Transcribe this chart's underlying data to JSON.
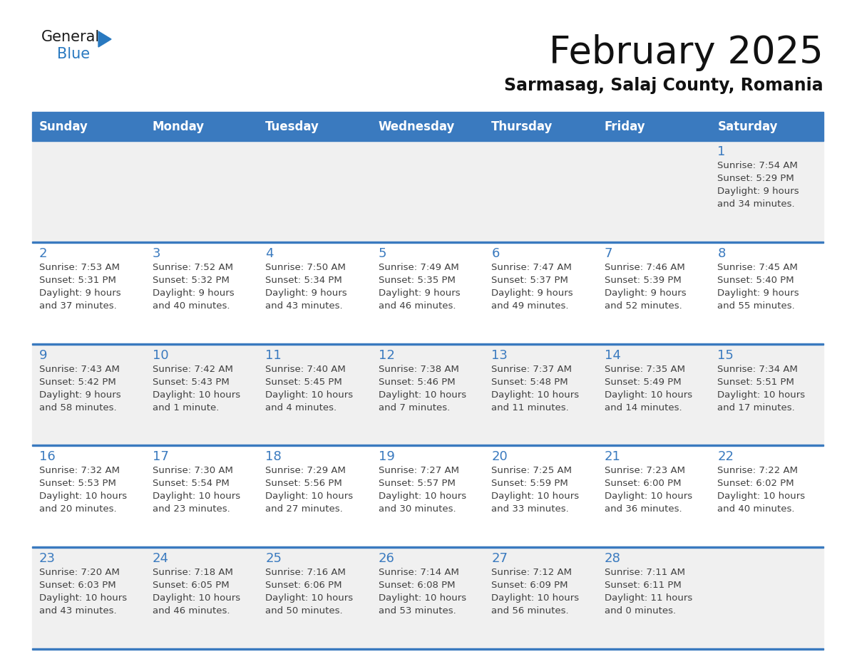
{
  "title": "February 2025",
  "subtitle": "Sarmasag, Salaj County, Romania",
  "header_color": "#3a7abf",
  "header_text_color": "#FFFFFF",
  "day_names": [
    "Sunday",
    "Monday",
    "Tuesday",
    "Wednesday",
    "Thursday",
    "Friday",
    "Saturday"
  ],
  "background_color": "#FFFFFF",
  "cell_bg_even": "#f0f0f0",
  "cell_bg_odd": "#FFFFFF",
  "separator_color": "#3a7abf",
  "number_color": "#3a7abf",
  "text_color": "#404040",
  "logo_general_color": "#1a1a1a",
  "logo_blue_color": "#2979C0",
  "logo_triangle_color": "#2979C0",
  "weeks": [
    [
      {
        "date": "",
        "sunrise": "",
        "sunset": "",
        "daylight1": "",
        "daylight2": ""
      },
      {
        "date": "",
        "sunrise": "",
        "sunset": "",
        "daylight1": "",
        "daylight2": ""
      },
      {
        "date": "",
        "sunrise": "",
        "sunset": "",
        "daylight1": "",
        "daylight2": ""
      },
      {
        "date": "",
        "sunrise": "",
        "sunset": "",
        "daylight1": "",
        "daylight2": ""
      },
      {
        "date": "",
        "sunrise": "",
        "sunset": "",
        "daylight1": "",
        "daylight2": ""
      },
      {
        "date": "",
        "sunrise": "",
        "sunset": "",
        "daylight1": "",
        "daylight2": ""
      },
      {
        "date": "1",
        "sunrise": "Sunrise: 7:54 AM",
        "sunset": "Sunset: 5:29 PM",
        "daylight1": "Daylight: 9 hours",
        "daylight2": "and 34 minutes."
      }
    ],
    [
      {
        "date": "2",
        "sunrise": "Sunrise: 7:53 AM",
        "sunset": "Sunset: 5:31 PM",
        "daylight1": "Daylight: 9 hours",
        "daylight2": "and 37 minutes."
      },
      {
        "date": "3",
        "sunrise": "Sunrise: 7:52 AM",
        "sunset": "Sunset: 5:32 PM",
        "daylight1": "Daylight: 9 hours",
        "daylight2": "and 40 minutes."
      },
      {
        "date": "4",
        "sunrise": "Sunrise: 7:50 AM",
        "sunset": "Sunset: 5:34 PM",
        "daylight1": "Daylight: 9 hours",
        "daylight2": "and 43 minutes."
      },
      {
        "date": "5",
        "sunrise": "Sunrise: 7:49 AM",
        "sunset": "Sunset: 5:35 PM",
        "daylight1": "Daylight: 9 hours",
        "daylight2": "and 46 minutes."
      },
      {
        "date": "6",
        "sunrise": "Sunrise: 7:47 AM",
        "sunset": "Sunset: 5:37 PM",
        "daylight1": "Daylight: 9 hours",
        "daylight2": "and 49 minutes."
      },
      {
        "date": "7",
        "sunrise": "Sunrise: 7:46 AM",
        "sunset": "Sunset: 5:39 PM",
        "daylight1": "Daylight: 9 hours",
        "daylight2": "and 52 minutes."
      },
      {
        "date": "8",
        "sunrise": "Sunrise: 7:45 AM",
        "sunset": "Sunset: 5:40 PM",
        "daylight1": "Daylight: 9 hours",
        "daylight2": "and 55 minutes."
      }
    ],
    [
      {
        "date": "9",
        "sunrise": "Sunrise: 7:43 AM",
        "sunset": "Sunset: 5:42 PM",
        "daylight1": "Daylight: 9 hours",
        "daylight2": "and 58 minutes."
      },
      {
        "date": "10",
        "sunrise": "Sunrise: 7:42 AM",
        "sunset": "Sunset: 5:43 PM",
        "daylight1": "Daylight: 10 hours",
        "daylight2": "and 1 minute."
      },
      {
        "date": "11",
        "sunrise": "Sunrise: 7:40 AM",
        "sunset": "Sunset: 5:45 PM",
        "daylight1": "Daylight: 10 hours",
        "daylight2": "and 4 minutes."
      },
      {
        "date": "12",
        "sunrise": "Sunrise: 7:38 AM",
        "sunset": "Sunset: 5:46 PM",
        "daylight1": "Daylight: 10 hours",
        "daylight2": "and 7 minutes."
      },
      {
        "date": "13",
        "sunrise": "Sunrise: 7:37 AM",
        "sunset": "Sunset: 5:48 PM",
        "daylight1": "Daylight: 10 hours",
        "daylight2": "and 11 minutes."
      },
      {
        "date": "14",
        "sunrise": "Sunrise: 7:35 AM",
        "sunset": "Sunset: 5:49 PM",
        "daylight1": "Daylight: 10 hours",
        "daylight2": "and 14 minutes."
      },
      {
        "date": "15",
        "sunrise": "Sunrise: 7:34 AM",
        "sunset": "Sunset: 5:51 PM",
        "daylight1": "Daylight: 10 hours",
        "daylight2": "and 17 minutes."
      }
    ],
    [
      {
        "date": "16",
        "sunrise": "Sunrise: 7:32 AM",
        "sunset": "Sunset: 5:53 PM",
        "daylight1": "Daylight: 10 hours",
        "daylight2": "and 20 minutes."
      },
      {
        "date": "17",
        "sunrise": "Sunrise: 7:30 AM",
        "sunset": "Sunset: 5:54 PM",
        "daylight1": "Daylight: 10 hours",
        "daylight2": "and 23 minutes."
      },
      {
        "date": "18",
        "sunrise": "Sunrise: 7:29 AM",
        "sunset": "Sunset: 5:56 PM",
        "daylight1": "Daylight: 10 hours",
        "daylight2": "and 27 minutes."
      },
      {
        "date": "19",
        "sunrise": "Sunrise: 7:27 AM",
        "sunset": "Sunset: 5:57 PM",
        "daylight1": "Daylight: 10 hours",
        "daylight2": "and 30 minutes."
      },
      {
        "date": "20",
        "sunrise": "Sunrise: 7:25 AM",
        "sunset": "Sunset: 5:59 PM",
        "daylight1": "Daylight: 10 hours",
        "daylight2": "and 33 minutes."
      },
      {
        "date": "21",
        "sunrise": "Sunrise: 7:23 AM",
        "sunset": "Sunset: 6:00 PM",
        "daylight1": "Daylight: 10 hours",
        "daylight2": "and 36 minutes."
      },
      {
        "date": "22",
        "sunrise": "Sunrise: 7:22 AM",
        "sunset": "Sunset: 6:02 PM",
        "daylight1": "Daylight: 10 hours",
        "daylight2": "and 40 minutes."
      }
    ],
    [
      {
        "date": "23",
        "sunrise": "Sunrise: 7:20 AM",
        "sunset": "Sunset: 6:03 PM",
        "daylight1": "Daylight: 10 hours",
        "daylight2": "and 43 minutes."
      },
      {
        "date": "24",
        "sunrise": "Sunrise: 7:18 AM",
        "sunset": "Sunset: 6:05 PM",
        "daylight1": "Daylight: 10 hours",
        "daylight2": "and 46 minutes."
      },
      {
        "date": "25",
        "sunrise": "Sunrise: 7:16 AM",
        "sunset": "Sunset: 6:06 PM",
        "daylight1": "Daylight: 10 hours",
        "daylight2": "and 50 minutes."
      },
      {
        "date": "26",
        "sunrise": "Sunrise: 7:14 AM",
        "sunset": "Sunset: 6:08 PM",
        "daylight1": "Daylight: 10 hours",
        "daylight2": "and 53 minutes."
      },
      {
        "date": "27",
        "sunrise": "Sunrise: 7:12 AM",
        "sunset": "Sunset: 6:09 PM",
        "daylight1": "Daylight: 10 hours",
        "daylight2": "and 56 minutes."
      },
      {
        "date": "28",
        "sunrise": "Sunrise: 7:11 AM",
        "sunset": "Sunset: 6:11 PM",
        "daylight1": "Daylight: 11 hours",
        "daylight2": "and 0 minutes."
      },
      {
        "date": "",
        "sunrise": "",
        "sunset": "",
        "daylight1": "",
        "daylight2": ""
      }
    ]
  ]
}
